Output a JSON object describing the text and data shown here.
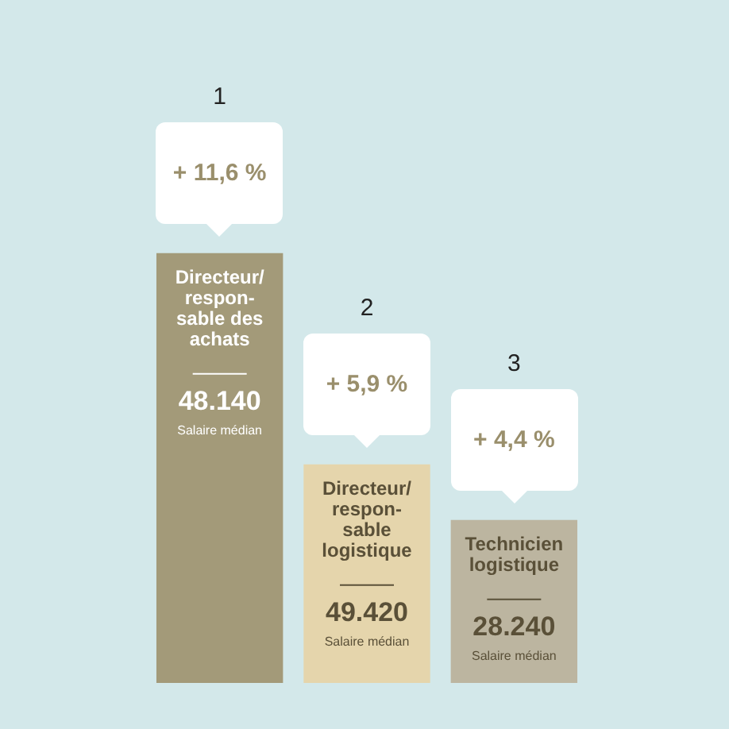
{
  "chart_data": {
    "type": "bar",
    "categories": [
      "Directeur/\nrespon-\nsable des\nachats",
      "Directeur/\nrespon-\nsable\nlogistique",
      "Technicien\nlogistique"
    ],
    "values": [
      11.6,
      5.9,
      4.4
    ],
    "colors": [
      "#a39a79",
      "#e5d5ac",
      "#bcb5a0"
    ],
    "value_labels": [
      "+ 11,6 %",
      "+ 5,9 %",
      "+ 4,4 %"
    ],
    "annotations": [
      "1",
      "48.140",
      "Salaire médian",
      "2",
      "49.420",
      "Salaire médian",
      "3",
      "28.240",
      "Salaire médian"
    ]
  }
}
